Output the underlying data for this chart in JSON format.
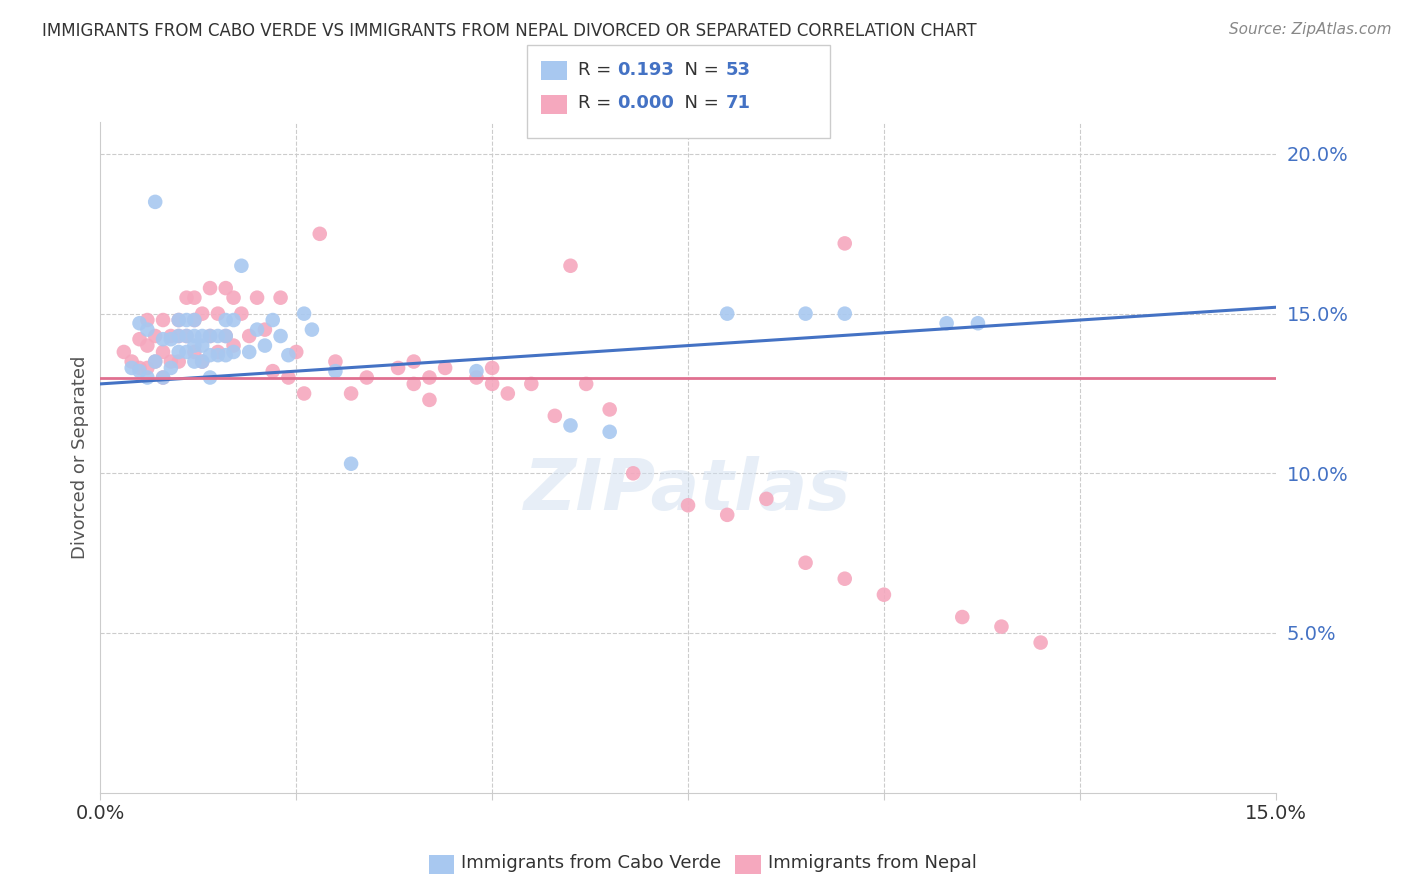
{
  "title": "IMMIGRANTS FROM CABO VERDE VS IMMIGRANTS FROM NEPAL DIVORCED OR SEPARATED CORRELATION CHART",
  "source": "Source: ZipAtlas.com",
  "ylabel": "Divorced or Separated",
  "xlim": [
    0.0,
    0.15
  ],
  "ylim": [
    0.0,
    0.21
  ],
  "yticks": [
    0.05,
    0.1,
    0.15,
    0.2
  ],
  "ytick_labels": [
    "5.0%",
    "10.0%",
    "15.0%",
    "20.0%"
  ],
  "cabo_verde_color": "#a8c8f0",
  "nepal_color": "#f5a8be",
  "cabo_verde_R": 0.193,
  "cabo_verde_N": 53,
  "nepal_R": 0.0,
  "nepal_N": 71,
  "legend_label_cabo": "Immigrants from Cabo Verde",
  "legend_label_nepal": "Immigrants from Nepal",
  "cabo_verde_x": [
    0.004,
    0.005,
    0.005,
    0.006,
    0.006,
    0.007,
    0.007,
    0.008,
    0.008,
    0.009,
    0.009,
    0.01,
    0.01,
    0.01,
    0.011,
    0.011,
    0.011,
    0.012,
    0.012,
    0.012,
    0.012,
    0.013,
    0.013,
    0.013,
    0.014,
    0.014,
    0.014,
    0.015,
    0.015,
    0.016,
    0.016,
    0.016,
    0.017,
    0.017,
    0.018,
    0.019,
    0.02,
    0.021,
    0.022,
    0.023,
    0.024,
    0.026,
    0.027,
    0.03,
    0.032,
    0.048,
    0.06,
    0.065,
    0.08,
    0.09,
    0.095,
    0.108,
    0.112
  ],
  "cabo_verde_y": [
    0.133,
    0.147,
    0.132,
    0.145,
    0.13,
    0.185,
    0.135,
    0.142,
    0.13,
    0.142,
    0.133,
    0.148,
    0.143,
    0.138,
    0.148,
    0.143,
    0.138,
    0.148,
    0.143,
    0.14,
    0.135,
    0.143,
    0.14,
    0.135,
    0.143,
    0.137,
    0.13,
    0.143,
    0.137,
    0.148,
    0.143,
    0.137,
    0.148,
    0.138,
    0.165,
    0.138,
    0.145,
    0.14,
    0.148,
    0.143,
    0.137,
    0.15,
    0.145,
    0.132,
    0.103,
    0.132,
    0.115,
    0.113,
    0.15,
    0.15,
    0.15,
    0.147,
    0.147
  ],
  "nepal_x": [
    0.003,
    0.004,
    0.005,
    0.005,
    0.006,
    0.006,
    0.006,
    0.007,
    0.007,
    0.008,
    0.008,
    0.008,
    0.009,
    0.009,
    0.01,
    0.01,
    0.01,
    0.011,
    0.011,
    0.012,
    0.012,
    0.012,
    0.013,
    0.013,
    0.014,
    0.014,
    0.015,
    0.015,
    0.016,
    0.016,
    0.017,
    0.017,
    0.018,
    0.019,
    0.02,
    0.021,
    0.022,
    0.023,
    0.024,
    0.025,
    0.026,
    0.028,
    0.03,
    0.032,
    0.034,
    0.038,
    0.04,
    0.042,
    0.044,
    0.048,
    0.05,
    0.04,
    0.042,
    0.05,
    0.052,
    0.055,
    0.058,
    0.06,
    0.062,
    0.065,
    0.068,
    0.075,
    0.08,
    0.085,
    0.09,
    0.095,
    0.095,
    0.1,
    0.11,
    0.115,
    0.12
  ],
  "nepal_y": [
    0.138,
    0.135,
    0.142,
    0.133,
    0.148,
    0.14,
    0.133,
    0.143,
    0.135,
    0.148,
    0.138,
    0.13,
    0.143,
    0.135,
    0.148,
    0.143,
    0.135,
    0.155,
    0.143,
    0.155,
    0.148,
    0.138,
    0.15,
    0.135,
    0.158,
    0.143,
    0.15,
    0.138,
    0.158,
    0.143,
    0.155,
    0.14,
    0.15,
    0.143,
    0.155,
    0.145,
    0.132,
    0.155,
    0.13,
    0.138,
    0.125,
    0.175,
    0.135,
    0.125,
    0.13,
    0.133,
    0.128,
    0.123,
    0.133,
    0.13,
    0.128,
    0.135,
    0.13,
    0.133,
    0.125,
    0.128,
    0.118,
    0.165,
    0.128,
    0.12,
    0.1,
    0.09,
    0.087,
    0.092,
    0.072,
    0.067,
    0.172,
    0.062,
    0.055,
    0.052,
    0.047
  ],
  "cabo_line_x": [
    0.0,
    0.15
  ],
  "cabo_line_y": [
    0.128,
    0.152
  ],
  "nepal_line_y": 0.13
}
